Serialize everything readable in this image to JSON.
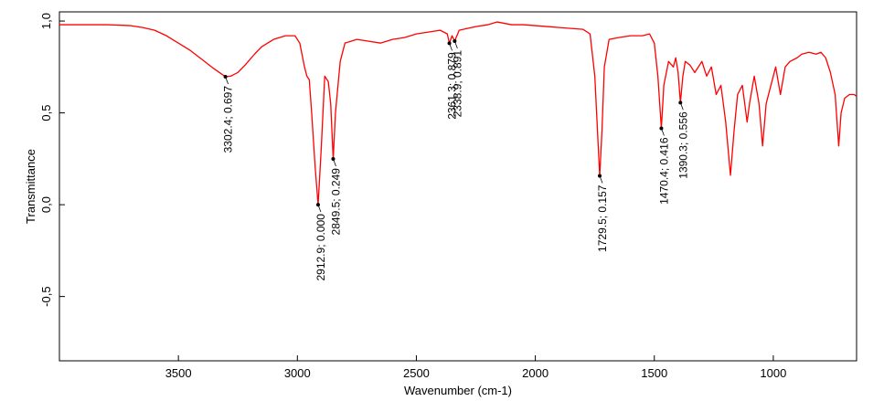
{
  "chart_data": {
    "type": "line",
    "x_label": "Wavenumber (cm-1)",
    "y_label": "Transmittance",
    "xlim": [
      4000,
      650
    ],
    "ylim": [
      -0.85,
      1.05
    ],
    "xticks": [
      3500,
      3000,
      2500,
      2000,
      1500,
      1000
    ],
    "yticks": [
      {
        "value": 1.0,
        "label": "1,0"
      },
      {
        "value": 0.5,
        "label": "0,5"
      },
      {
        "value": 0.0,
        "label": "0,0"
      },
      {
        "value": -0.5,
        "label": "-0,5"
      }
    ],
    "series": [
      {
        "color": "#ff0000",
        "x": [
          4000,
          3900,
          3800,
          3700,
          3650,
          3600,
          3550,
          3500,
          3450,
          3400,
          3350,
          3302.4,
          3280,
          3250,
          3220,
          3180,
          3150,
          3100,
          3050,
          3010,
          2990,
          2970,
          2960,
          2950,
          2940,
          2925,
          2912.9,
          2900,
          2885,
          2870,
          2860,
          2849.5,
          2840,
          2820,
          2800,
          2750,
          2700,
          2650,
          2600,
          2550,
          2500,
          2450,
          2400,
          2370,
          2361.3,
          2350,
          2338.9,
          2320,
          2250,
          2200,
          2160,
          2100,
          2050,
          2000,
          1950,
          1900,
          1850,
          1800,
          1770,
          1750,
          1735,
          1729.5,
          1720,
          1710,
          1690,
          1650,
          1600,
          1550,
          1520,
          1500,
          1485,
          1470.4,
          1460,
          1440,
          1420,
          1410,
          1400,
          1390.3,
          1380,
          1370,
          1350,
          1330,
          1300,
          1280,
          1260,
          1240,
          1220,
          1200,
          1180,
          1165,
          1150,
          1130,
          1110,
          1100,
          1080,
          1060,
          1045,
          1030,
          1010,
          990,
          970,
          950,
          930,
          900,
          880,
          850,
          820,
          800,
          780,
          760,
          740,
          725,
          715,
          700,
          680,
          660,
          650
        ],
        "values": [
          0.98,
          0.98,
          0.98,
          0.975,
          0.965,
          0.95,
          0.92,
          0.88,
          0.84,
          0.79,
          0.74,
          0.697,
          0.7,
          0.72,
          0.76,
          0.82,
          0.86,
          0.9,
          0.92,
          0.92,
          0.88,
          0.75,
          0.7,
          0.68,
          0.5,
          0.2,
          0.0,
          0.3,
          0.7,
          0.67,
          0.55,
          0.249,
          0.5,
          0.78,
          0.88,
          0.9,
          0.89,
          0.88,
          0.9,
          0.91,
          0.93,
          0.94,
          0.95,
          0.93,
          0.879,
          0.92,
          0.891,
          0.95,
          0.97,
          0.98,
          0.995,
          0.98,
          0.98,
          0.975,
          0.97,
          0.965,
          0.96,
          0.955,
          0.93,
          0.7,
          0.3,
          0.157,
          0.4,
          0.75,
          0.9,
          0.91,
          0.92,
          0.92,
          0.93,
          0.88,
          0.7,
          0.416,
          0.65,
          0.78,
          0.75,
          0.8,
          0.72,
          0.556,
          0.7,
          0.78,
          0.76,
          0.72,
          0.78,
          0.7,
          0.75,
          0.6,
          0.65,
          0.45,
          0.16,
          0.4,
          0.6,
          0.65,
          0.45,
          0.55,
          0.7,
          0.55,
          0.32,
          0.55,
          0.65,
          0.75,
          0.6,
          0.75,
          0.78,
          0.8,
          0.82,
          0.83,
          0.82,
          0.83,
          0.8,
          0.72,
          0.6,
          0.32,
          0.5,
          0.58,
          0.6,
          0.6,
          0.59
        ]
      }
    ],
    "annotations": [
      {
        "x": 3302.4,
        "y": 0.697,
        "label": "3302.4; 0.697"
      },
      {
        "x": 2912.9,
        "y": 0.0,
        "label": "2912.9; 0.000"
      },
      {
        "x": 2849.5,
        "y": 0.249,
        "label": "2849.5; 0.249"
      },
      {
        "x": 2361.3,
        "y": 0.879,
        "label": "2361.3; 0.879"
      },
      {
        "x": 2338.9,
        "y": 0.891,
        "label": "2338.9; 0.891"
      },
      {
        "x": 1729.5,
        "y": 0.157,
        "label": "1729.5; 0.157"
      },
      {
        "x": 1470.4,
        "y": 0.416,
        "label": "1470.4; 0.416"
      },
      {
        "x": 1390.3,
        "y": 0.556,
        "label": "1390.3; 0.556"
      }
    ]
  }
}
